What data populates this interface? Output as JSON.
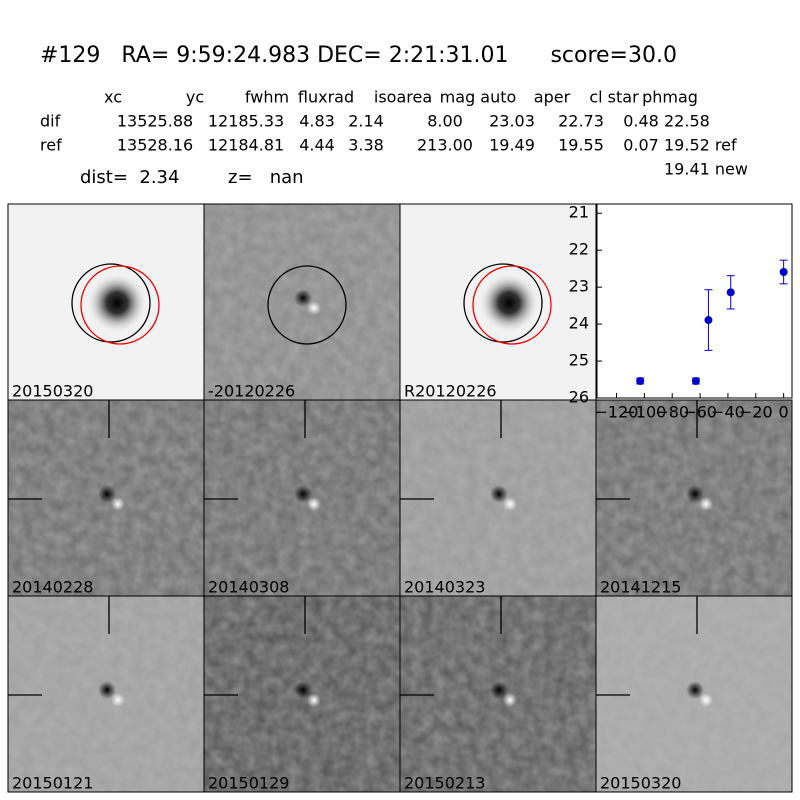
{
  "header": {
    "title": "#129   RA= 9:59:24.983 DEC= 2:21:31.01      score=30.0"
  },
  "table": {
    "columns": [
      "xc",
      "yc",
      "fwhm",
      "fluxrad",
      "isoarea",
      "mag auto",
      "aper",
      "cl star",
      "phmag"
    ],
    "rows": [
      [
        "dif",
        "13525.88",
        "12185.33",
        "4.83",
        "2.14",
        "8.00",
        "23.03",
        "22.73",
        "0.48",
        "22.58"
      ],
      [
        "ref",
        "13528.16",
        "12184.81",
        "4.44",
        "3.38",
        "213.00",
        "19.49",
        "19.55",
        "0.07",
        "19.52 ref"
      ]
    ],
    "extra": "19.41 new"
  },
  "info": {
    "dist": "dist=  2.34",
    "z": "z=   nan"
  },
  "panels": [
    {
      "label": "20150320",
      "color": "#000000"
    },
    {
      "label": "-20120226",
      "color": "#000000"
    },
    {
      "label": "R20120226",
      "color": "#000000"
    },
    {
      "label": "20140228",
      "color": "#000000"
    },
    {
      "label": "20140308",
      "color": "#000000"
    },
    {
      "label": "20140323",
      "color": "#000000"
    },
    {
      "label": "20141215",
      "color": "#000000"
    },
    {
      "label": "20150121",
      "color": "#000000"
    },
    {
      "label": "20150129",
      "color": "#000000"
    },
    {
      "label": "20150213",
      "color": "#000000"
    },
    {
      "label": "20150320",
      "color": "#ff0000"
    }
  ],
  "chart_data": {
    "type": "errorbar",
    "x": [
      -103,
      -63,
      -54,
      -38,
      0
    ],
    "series": [
      {
        "color": "#0000cc",
        "values": [
          25.54,
          25.54,
          23.89,
          23.14,
          22.59
        ],
        "errors": [
          0.08,
          0.08,
          0.82,
          0.45,
          0.32
        ]
      }
    ],
    "xlim": [
      -134,
      6
    ],
    "ylim": [
      26,
      20.75
    ],
    "xticks": [
      {
        "value": -120,
        "label": "−120"
      },
      {
        "value": -100,
        "label": "−100"
      },
      {
        "value": -80,
        "label": "−80"
      },
      {
        "value": -60,
        "label": "−60"
      },
      {
        "value": -40,
        "label": "−40"
      },
      {
        "value": -20,
        "label": "−20"
      },
      0
    ],
    "yticks": [
      21,
      22,
      23,
      24,
      25,
      26
    ]
  }
}
